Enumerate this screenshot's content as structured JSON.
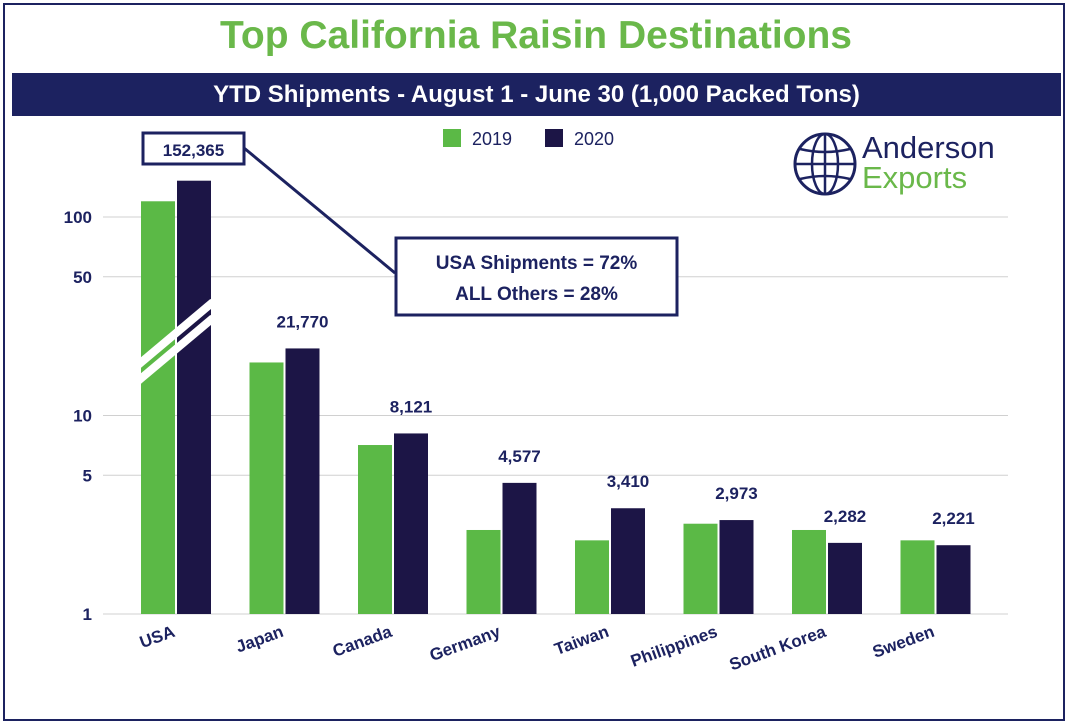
{
  "chart_data": {
    "type": "bar",
    "title": "Top California Raisin Destinations",
    "subtitle": "YTD Shipments - August 1 - June 30 (1,000 Packed Tons)",
    "y_scale": "log",
    "ylim": [
      1,
      200
    ],
    "y_ticks": [
      1,
      5,
      10,
      50,
      100
    ],
    "y_tick_labels": [
      "1",
      "5",
      "10",
      "50",
      "100"
    ],
    "categories": [
      "USA",
      "Japan",
      "Canada",
      "Germany",
      "Taiwan",
      "Philippines",
      "South Korea",
      "Sweden"
    ],
    "series": [
      {
        "name": "2019",
        "color": "#5bb946",
        "values": [
          120,
          18.5,
          7.1,
          2.65,
          2.35,
          2.85,
          2.65,
          2.35
        ]
      },
      {
        "name": "2020",
        "color": "#1c1546",
        "values": [
          152.365,
          21.77,
          8.121,
          4.577,
          3.41,
          2.973,
          2.282,
          2.221
        ]
      }
    ],
    "data_labels": [
      "152,365",
      "21,770",
      "8,121",
      "4,577",
      "3,410",
      "2,973",
      "2,282",
      "2,221"
    ],
    "axis_break_on": "USA",
    "legend_position": "top-center",
    "grid": true,
    "annotation": {
      "lines": [
        "USA Shipments = 72%",
        "ALL Others = 28%"
      ]
    }
  },
  "logo": {
    "line1": "Anderson",
    "line2": "Exports",
    "icon": "globe-icon"
  }
}
